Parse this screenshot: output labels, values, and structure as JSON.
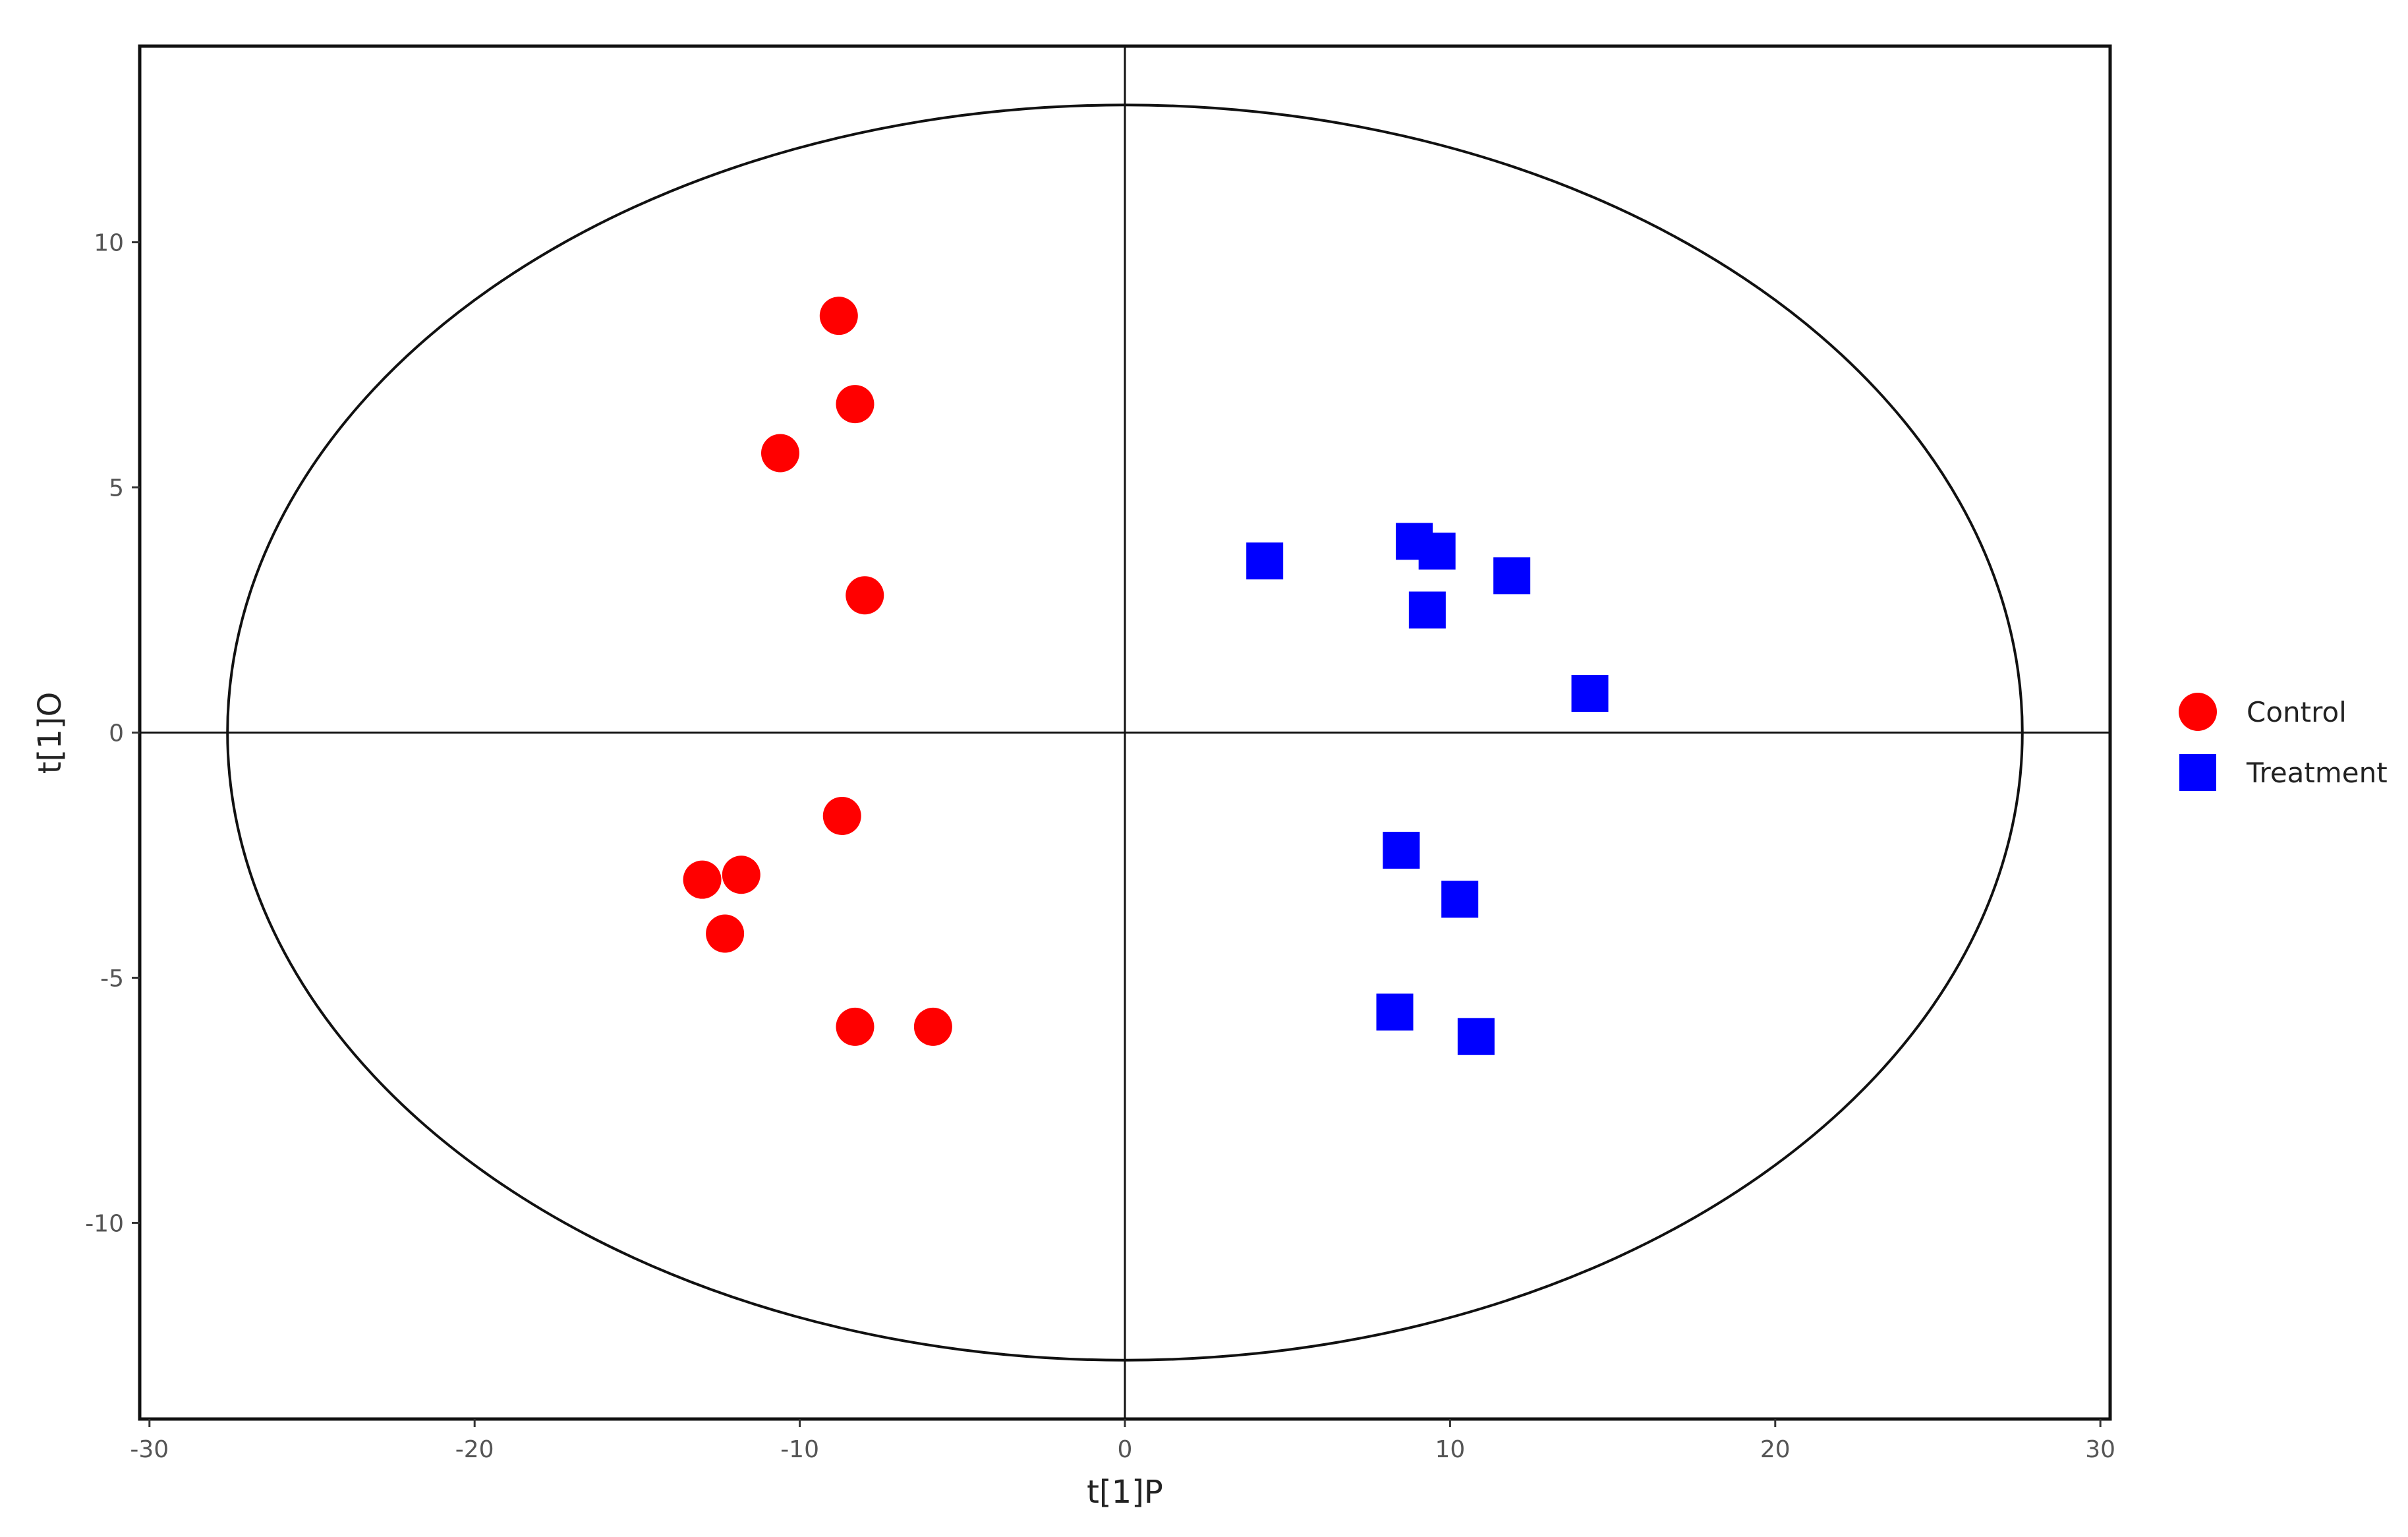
{
  "chart_data": {
    "type": "scatter",
    "title": "",
    "xlabel": "t[1]P",
    "ylabel": "t[1]O",
    "xlim": [
      -30.3,
      30.3
    ],
    "ylim": [
      -14.0,
      14.0
    ],
    "x_ticks": [
      -30,
      -20,
      -10,
      0,
      10,
      20,
      30
    ],
    "y_ticks": [
      -10,
      -5,
      0,
      5,
      10
    ],
    "x_tick_labels": [
      "-30",
      "-20",
      "-10",
      "0",
      "10",
      "20",
      "30"
    ],
    "y_tick_labels": [
      "-10",
      "-5",
      "0",
      "5",
      "10"
    ],
    "grid": false,
    "reference_lines": {
      "x": 0,
      "y": 0
    },
    "confidence_ellipse": {
      "center": [
        0,
        0
      ],
      "x_radius": 27.6,
      "y_radius": 12.8
    },
    "legend": {
      "position": "right"
    },
    "series": [
      {
        "name": "Control",
        "marker": "circle",
        "color": "#ff0000",
        "points": [
          {
            "x": -8.8,
            "y": 8.5
          },
          {
            "x": -8.3,
            "y": 6.7
          },
          {
            "x": -10.6,
            "y": 5.7
          },
          {
            "x": -8.0,
            "y": 2.8
          },
          {
            "x": -8.7,
            "y": -1.7
          },
          {
            "x": -13.0,
            "y": -3.0
          },
          {
            "x": -11.8,
            "y": -2.9
          },
          {
            "x": -12.3,
            "y": -4.1
          },
          {
            "x": -8.3,
            "y": -6.0
          },
          {
            "x": -5.9,
            "y": -6.0
          }
        ]
      },
      {
        "name": "Treatment",
        "marker": "square",
        "color": "#0000ff",
        "points": [
          {
            "x": 4.3,
            "y": 3.5
          },
          {
            "x": 8.9,
            "y": 3.9
          },
          {
            "x": 9.6,
            "y": 3.7
          },
          {
            "x": 11.9,
            "y": 3.2
          },
          {
            "x": 9.3,
            "y": 2.5
          },
          {
            "x": 14.3,
            "y": 0.8
          },
          {
            "x": 8.5,
            "y": -2.4
          },
          {
            "x": 10.3,
            "y": -3.4
          },
          {
            "x": 8.3,
            "y": -5.7
          },
          {
            "x": 10.8,
            "y": -6.2
          }
        ]
      }
    ]
  }
}
